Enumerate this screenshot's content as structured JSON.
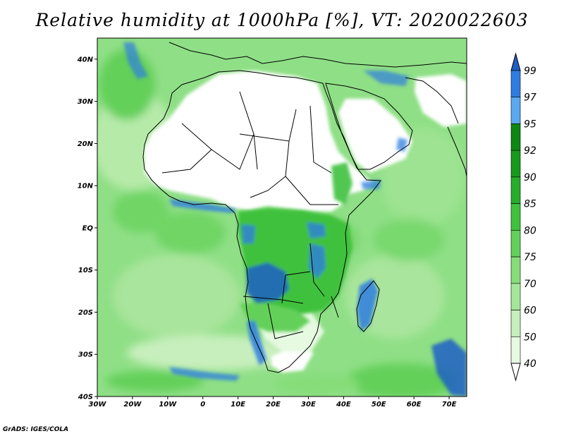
{
  "title": "Relative humidity at 1000hPa [%], VT: 2020022603",
  "credit": "GrADS: IGES/COLA",
  "map": {
    "lon_range": [
      -30,
      75
    ],
    "lat_range": [
      -40,
      45
    ],
    "lon_ticks": [
      {
        "value": -30,
        "label": "30W"
      },
      {
        "value": -20,
        "label": "20W"
      },
      {
        "value": -10,
        "label": "10W"
      },
      {
        "value": 0,
        "label": "0"
      },
      {
        "value": 10,
        "label": "10E"
      },
      {
        "value": 20,
        "label": "20E"
      },
      {
        "value": 30,
        "label": "30E"
      },
      {
        "value": 40,
        "label": "40E"
      },
      {
        "value": 50,
        "label": "50E"
      },
      {
        "value": 60,
        "label": "60E"
      },
      {
        "value": 70,
        "label": "70E"
      }
    ],
    "lat_ticks": [
      {
        "value": 40,
        "label": "40N"
      },
      {
        "value": 30,
        "label": "30N"
      },
      {
        "value": 20,
        "label": "20N"
      },
      {
        "value": 10,
        "label": "10N"
      },
      {
        "value": 0,
        "label": "EQ"
      },
      {
        "value": -10,
        "label": "10S"
      },
      {
        "value": -20,
        "label": "20S"
      },
      {
        "value": -30,
        "label": "30S"
      },
      {
        "value": -40,
        "label": "40S"
      }
    ]
  },
  "colorbar": {
    "levels": [
      "40",
      "50",
      "60",
      "70",
      "75",
      "80",
      "85",
      "90",
      "92",
      "95",
      "97",
      "99"
    ],
    "colors": [
      "#ffffff",
      "#e6f9e1",
      "#c7efbd",
      "#a6e69a",
      "#86dd79",
      "#63d05a",
      "#3fc13e",
      "#27ad2a",
      "#17991c",
      "#0d8812",
      "#5aa8ef",
      "#2f7de0",
      "#1f5fc4"
    ]
  },
  "features": {
    "land_dry_color": "#ffffff",
    "ocean_color": "#8fdf86",
    "coast_color": "#000000"
  }
}
